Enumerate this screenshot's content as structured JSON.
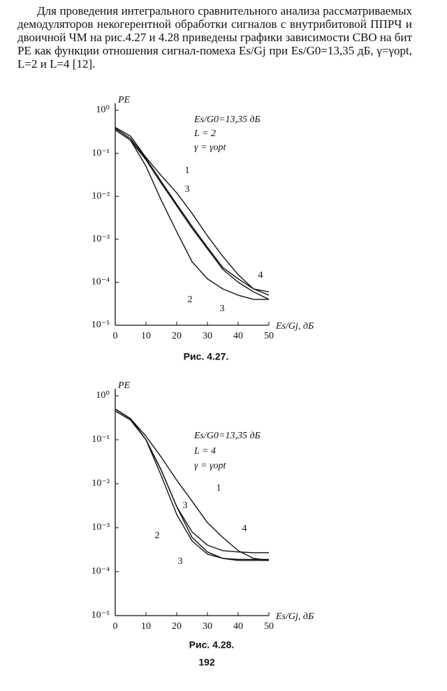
{
  "paragraph": "Для проведения интегрального сравнительного анализа рассматриваемых демодуляторов некогерентной обработки сигналов с внутрибитовой ППРЧ и двоичной ЧМ на рис.4.27 и 4.28 приведены графики зависимости СВО на бит PE как функции отношения сигнал-помеха Es/Gj при Es/G0=13,35 дБ, γ=γopt, L=2 и L=4 [12].",
  "page_number": "192",
  "chart_data": [
    {
      "type": "line",
      "caption": "Рис. 4.27.",
      "y_label": "PE",
      "x_label": "Es/Gj, дБ",
      "annotations": [
        "Es/G0=13,35 дБ",
        "L = 2",
        "γ = γopt"
      ],
      "log_y": true,
      "color": "#111111",
      "x": [
        0,
        5,
        10,
        15,
        20,
        25,
        30,
        35,
        40,
        45,
        50
      ],
      "xlim": [
        0,
        50
      ],
      "xticks": [
        0,
        10,
        20,
        30,
        40,
        50
      ],
      "ylim": [
        1e-05,
        1
      ],
      "yticks": [
        {
          "value": 1,
          "label": "10⁰"
        },
        {
          "value": 0.1,
          "label": "10⁻¹"
        },
        {
          "value": 0.01,
          "label": "10⁻²"
        },
        {
          "value": 0.001,
          "label": "10⁻³"
        },
        {
          "value": 0.0001,
          "label": "10⁻⁴"
        },
        {
          "value": 1e-05,
          "label": "10⁻⁵"
        }
      ],
      "series": [
        {
          "name": "1",
          "values": [
            0.4,
            0.25,
            0.08,
            0.03,
            0.012,
            0.004,
            0.0012,
            0.0004,
            0.00015,
            7e-05,
            5e-05
          ]
        },
        {
          "name": "2",
          "values": [
            0.35,
            0.2,
            0.05,
            0.008,
            0.0015,
            0.0003,
            0.00012,
            7e-05,
            5e-05,
            4e-05,
            4e-05
          ]
        },
        {
          "name": "3",
          "values": [
            0.35,
            0.2,
            0.07,
            0.02,
            0.006,
            0.0018,
            0.0006,
            0.0002,
            0.0001,
            6e-05,
            4e-05
          ]
        },
        {
          "name": "4",
          "values": [
            0.38,
            0.22,
            0.075,
            0.022,
            0.0065,
            0.002,
            0.00065,
            0.00022,
            0.00012,
            7e-05,
            6e-05
          ]
        }
      ]
    },
    {
      "type": "line",
      "caption": "Рис. 4.28.",
      "y_label": "PE",
      "x_label": "Es/Gj, дБ",
      "annotations": [
        "Es/G0=13,35 дБ",
        "L = 4",
        "γ = γopt"
      ],
      "log_y": true,
      "color": "#111111",
      "x": [
        0,
        5,
        10,
        15,
        20,
        25,
        30,
        35,
        40,
        45,
        50
      ],
      "xlim": [
        0,
        50
      ],
      "xticks": [
        0,
        10,
        20,
        30,
        40,
        50
      ],
      "ylim": [
        1e-05,
        1
      ],
      "yticks": [
        {
          "value": 1,
          "label": "10⁰"
        },
        {
          "value": 0.1,
          "label": "10⁻¹"
        },
        {
          "value": 0.01,
          "label": "10⁻²"
        },
        {
          "value": 0.001,
          "label": "10⁻³"
        },
        {
          "value": 0.0001,
          "label": "10⁻⁴"
        },
        {
          "value": 1e-05,
          "label": "10⁻⁵"
        }
      ],
      "series": [
        {
          "name": "1",
          "values": [
            0.5,
            0.3,
            0.12,
            0.04,
            0.012,
            0.004,
            0.0013,
            0.0006,
            0.0003,
            0.0002,
            0.00018
          ]
        },
        {
          "name": "2",
          "values": [
            0.5,
            0.3,
            0.1,
            0.015,
            0.002,
            0.0005,
            0.00025,
            0.0002,
            0.00018,
            0.00018,
            0.00018
          ]
        },
        {
          "name": "3",
          "values": [
            0.45,
            0.28,
            0.1,
            0.02,
            0.003,
            0.0006,
            0.00028,
            0.0002,
            0.00019,
            0.00019,
            0.00019
          ]
        },
        {
          "name": "4",
          "values": [
            0.45,
            0.28,
            0.1,
            0.02,
            0.003,
            0.0008,
            0.0004,
            0.0003,
            0.00028,
            0.00027,
            0.00027
          ]
        }
      ]
    }
  ]
}
